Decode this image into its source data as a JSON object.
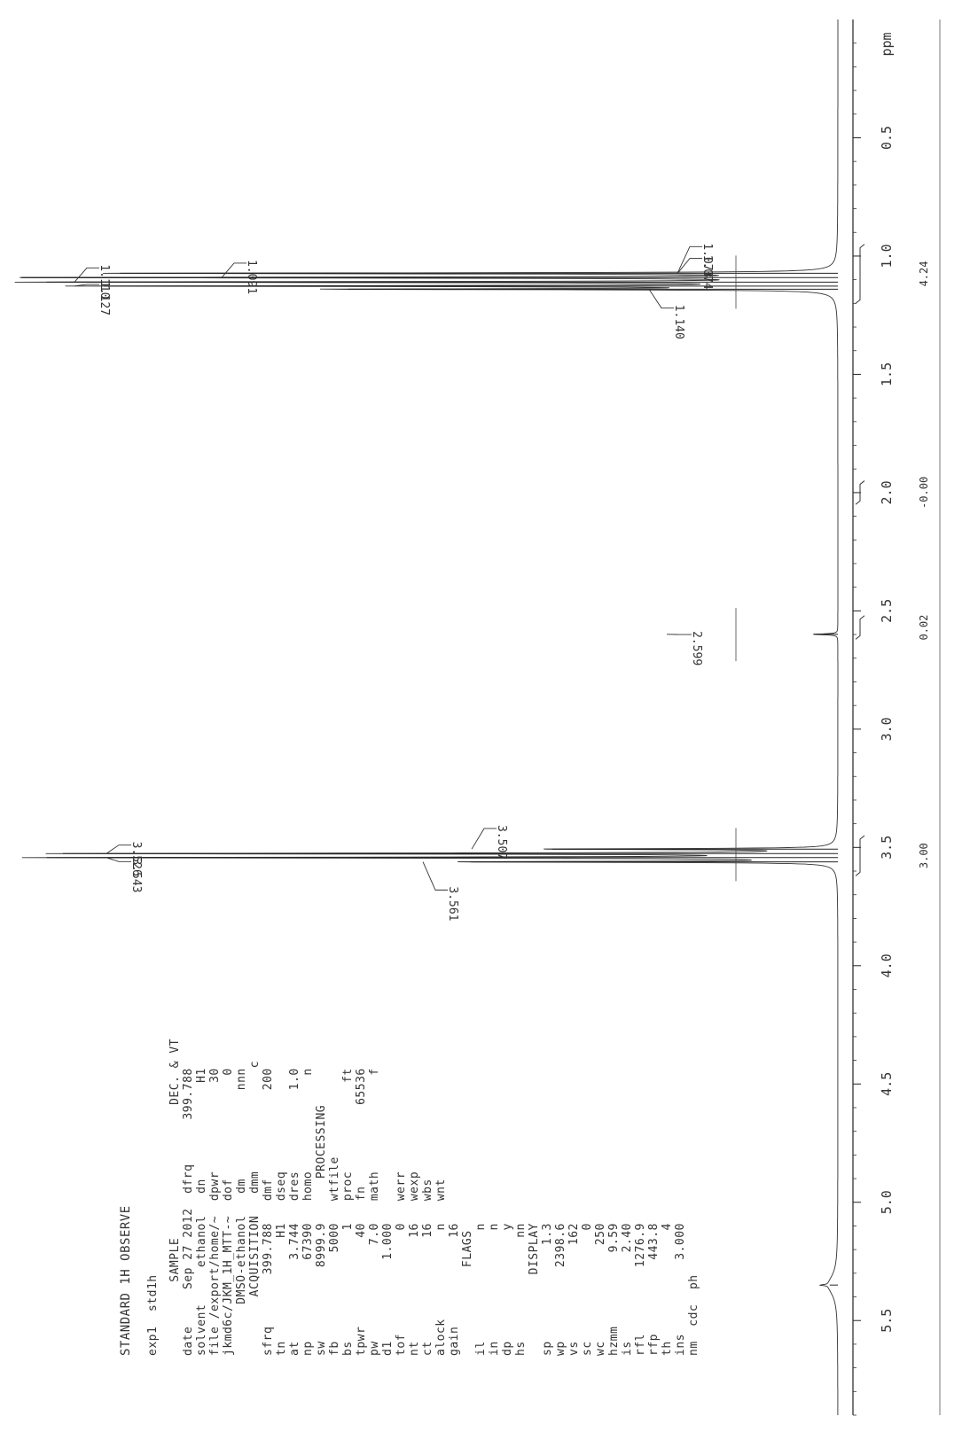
{
  "header": {
    "title": "STANDARD 1H OBSERVE",
    "exp": "exp1  std1h"
  },
  "param_rows": [
    "          SAMPLE                  DEC. & VT",
    "date     Sep 27 2012  dfrq      399.788",
    "solvent     ethanol   dn             H1",
    "file /export/home/~  dpwr            30",
    "jkmd6c/JKM_1H_MTT-~  dof              0",
    "       DMSO-ethanol   dm            nnn",
    "        ACQUISITION   dmm              c",
    "sfrq       399.788   dmf            200",
    "tn              H1   dseq",
    "at           3.744   dres           1.0",
    "np           67390   homo             n",
    "sw          8999.9      PROCESSING",
    "fb            5000   wtfile",
    "bs               1   proc            ft",
    "tpwr            40   fn           65536",
    "pw             7.0   math             f",
    "d1           1.000",
    "tof              0   werr",
    "nt              16   wexp",
    "ct              16   wbs",
    "alock            n   wnt",
    "gain            16",
    "            FLAGS",
    "il               n",
    "in               n",
    "dp               y",
    "hs              nn",
    "           DISPLAY",
    "sp             1.3",
    "wp          2398.6",
    "vs             162",
    "sc               0",
    "wc             250",
    "hzmm          9.59",
    "is            2.40",
    "rfl         1276.9",
    "rfp          443.8",
    "th               4",
    "ins          3.000",
    "nm  cdc  ph"
  ],
  "chart_data": {
    "type": "line",
    "xlabel": "ppm",
    "x_ticks": [
      "0.5",
      "1.0",
      "1.5",
      "2.0",
      "2.5",
      "3.0",
      "3.5",
      "4.0",
      "4.5",
      "5.0",
      "5.5"
    ],
    "xlim": [
      0.0,
      5.9
    ],
    "x_reversed": true,
    "series": [
      {
        "peaks": [
          {
            "ppm": 1.073,
            "height": 0.88
          },
          {
            "ppm": 1.091,
            "height": 1.0
          },
          {
            "ppm": 1.11,
            "height": 0.97
          },
          {
            "ppm": 1.127,
            "height": 0.9
          },
          {
            "ppm": 1.14,
            "height": 0.6
          },
          {
            "ppm": 2.599,
            "height": 0.03
          },
          {
            "ppm": 3.507,
            "height": 0.35
          },
          {
            "ppm": 3.526,
            "height": 0.95
          },
          {
            "ppm": 3.543,
            "height": 0.97
          },
          {
            "ppm": 3.561,
            "height": 0.45
          },
          {
            "ppm": 5.35,
            "height": 0.01
          }
        ]
      }
    ],
    "peak_labels": [
      "1.073",
      "1.074",
      "1.091",
      "1.110",
      "1.127",
      "1.140",
      "2.599",
      "3.507",
      "3.526",
      "3.543",
      "3.561"
    ],
    "integrals": [
      {
        "from": 0.95,
        "to": 1.2,
        "value": "4.24"
      },
      {
        "from": 1.95,
        "to": 2.05,
        "value": "-0.00"
      },
      {
        "from": 2.52,
        "to": 2.62,
        "value": "0.02"
      },
      {
        "from": 3.45,
        "to": 3.62,
        "value": "3.00"
      }
    ]
  }
}
